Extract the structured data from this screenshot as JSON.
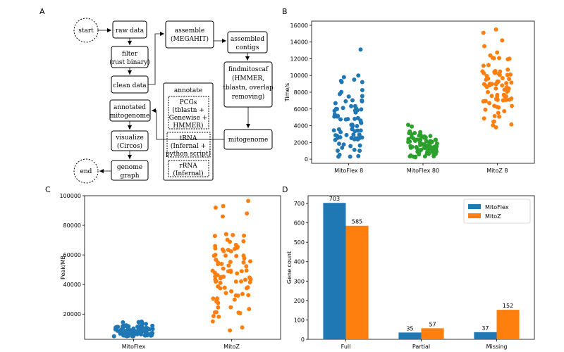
{
  "panels": [
    "A",
    "B",
    "C",
    "D"
  ],
  "flowchart": {
    "start": "start",
    "end": "end",
    "raw_data": "raw data",
    "filter": [
      "filter",
      "(rust binary)"
    ],
    "clean_data": "clean data",
    "assemble": [
      "assemble",
      "(MEGAHIT)"
    ],
    "assembled_contigs": [
      "assembled",
      "contigs"
    ],
    "findmitoscaf": [
      "findmitoscaf",
      "(HMMER,",
      "tblastn, overlap",
      "removing)"
    ],
    "mitogenome": "mitogenome",
    "annotate": "annotate",
    "pcgs": [
      "PCGs",
      "(tblastn +",
      "Genewise +",
      "HMMER)"
    ],
    "trna": [
      "tRNA",
      "(Infernal +",
      "python script)"
    ],
    "rrna": [
      "rRNA",
      "(Infernal)"
    ],
    "annotated_mitogenome": [
      "annotated",
      "mitogenome"
    ],
    "visualize": [
      "visualize",
      "(Circos)"
    ],
    "genome_graph": [
      "genome",
      "graph"
    ]
  },
  "chart_data": [
    {
      "panel": "B",
      "type": "scatter",
      "ylabel": "Time/s",
      "categories": [
        "MitoFlex 8",
        "MitoFlex 80",
        "MitoZ 8"
      ],
      "ylim": [
        -500,
        16500
      ],
      "yticks": [
        0,
        2000,
        4000,
        6000,
        8000,
        10000,
        12000,
        14000,
        16000
      ],
      "series": [
        {
          "category": "MitoFlex 8",
          "color": "#1f77b4",
          "n": 80,
          "min": 300,
          "max": 13100,
          "center": 3800,
          "spread": 2400,
          "outliers": [
            13100,
            10000,
            9800,
            9500
          ]
        },
        {
          "category": "MitoFlex 80",
          "color": "#2ca02c",
          "n": 80,
          "min": 200,
          "max": 4100,
          "center": 1600,
          "spread": 900,
          "outliers": [
            4100,
            3900
          ]
        },
        {
          "category": "MitoZ 8",
          "color": "#ff7f0e",
          "n": 80,
          "min": 3800,
          "max": 15500,
          "center": 8500,
          "spread": 2000,
          "outliers": [
            15500,
            15100,
            14200,
            13500,
            3800
          ]
        }
      ]
    },
    {
      "panel": "C",
      "type": "scatter",
      "ylabel": "Peak/MB",
      "categories": [
        "MitoFlex",
        "MitoZ"
      ],
      "ylim": [
        3000,
        100000
      ],
      "yticks": [
        20000,
        40000,
        60000,
        80000,
        100000
      ],
      "series": [
        {
          "category": "MitoFlex",
          "color": "#1f77b4",
          "n": 90,
          "min": 5000,
          "max": 15000,
          "center": 8500,
          "spread": 2500,
          "outliers": [
            15000,
            14500
          ]
        },
        {
          "category": "MitoZ",
          "color": "#ff7f0e",
          "n": 90,
          "min": 9000,
          "max": 96500,
          "center": 42000,
          "spread": 18000,
          "outliers": [
            96500,
            93000,
            92000,
            88000,
            86000
          ]
        }
      ]
    },
    {
      "panel": "D",
      "type": "bar",
      "ylabel": "Gene count",
      "categories": [
        "Full",
        "Partial",
        "Missing"
      ],
      "ylim": [
        0,
        740
      ],
      "yticks": [
        0,
        100,
        200,
        300,
        400,
        500,
        600,
        700
      ],
      "series": [
        {
          "name": "MitoFlex",
          "color": "#1f77b4",
          "values": [
            703,
            35,
            37
          ]
        },
        {
          "name": "MitoZ",
          "color": "#ff7f0e",
          "values": [
            585,
            57,
            152
          ]
        }
      ],
      "legend": "top-right"
    }
  ]
}
